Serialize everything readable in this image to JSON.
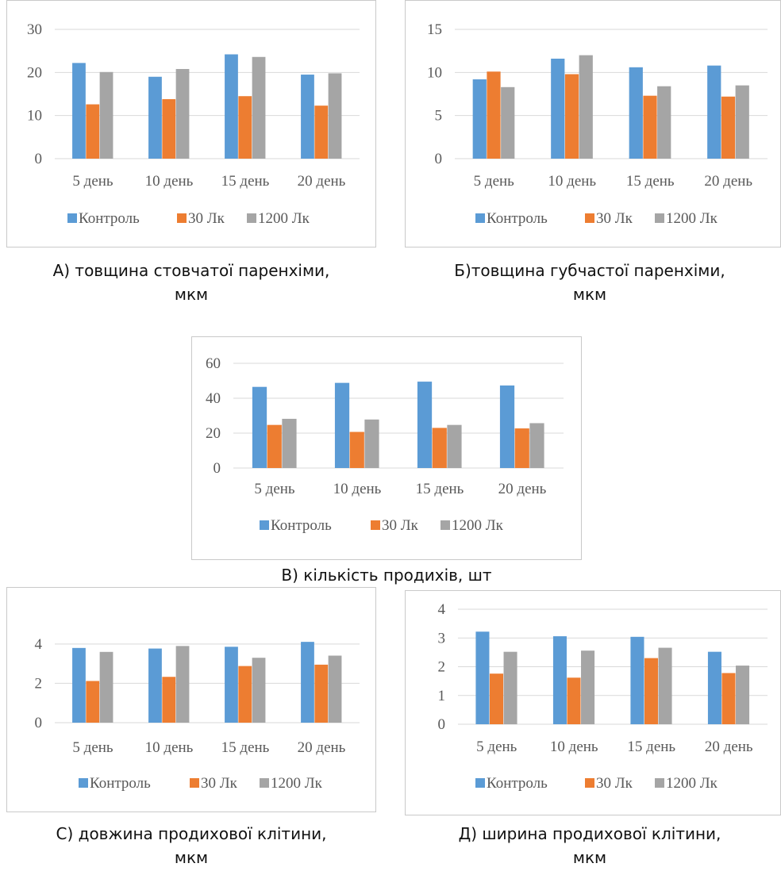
{
  "chart_data": [
    {
      "type": "bar",
      "categories": [
        "5 день",
        "10 день",
        "15 день",
        "20 день"
      ],
      "series": [
        {
          "name": "Контроль",
          "values": [
            22.2,
            19.0,
            24.2,
            19.5
          ]
        },
        {
          "name": "30 Лк",
          "values": [
            12.6,
            13.8,
            14.5,
            12.3
          ]
        },
        {
          "name": "1200 Лк",
          "values": [
            20.1,
            20.8,
            23.6,
            19.8
          ]
        }
      ],
      "ylim": [
        0,
        30
      ],
      "yticks": [
        0,
        10,
        20,
        30
      ],
      "caption_lines": [
        "А) товщина стовчатої паренхіми,",
        "мкм"
      ]
    },
    {
      "type": "bar",
      "categories": [
        "5 день",
        "10 день",
        "15 день",
        "20 день"
      ],
      "series": [
        {
          "name": "Контроль",
          "values": [
            9.2,
            11.6,
            10.6,
            10.8
          ]
        },
        {
          "name": "30 Лк",
          "values": [
            10.1,
            9.8,
            7.3,
            7.2
          ]
        },
        {
          "name": "1200 Лк",
          "values": [
            8.3,
            12.0,
            8.4,
            8.5
          ]
        }
      ],
      "ylim": [
        0,
        15
      ],
      "yticks": [
        0,
        5,
        10,
        15
      ],
      "caption_lines": [
        "Б)товщина губчастої паренхіми,",
        "мкм"
      ]
    },
    {
      "type": "bar",
      "categories": [
        "5 день",
        "10 день",
        "15 день",
        "20 день"
      ],
      "series": [
        {
          "name": "Контроль",
          "values": [
            46.5,
            48.8,
            49.5,
            47.3
          ]
        },
        {
          "name": "30 Лк",
          "values": [
            24.7,
            20.7,
            23.0,
            22.7
          ]
        },
        {
          "name": "1200 Лк",
          "values": [
            28.2,
            27.8,
            24.7,
            25.7
          ]
        }
      ],
      "ylim": [
        0,
        60
      ],
      "yticks": [
        0,
        20,
        40,
        60
      ],
      "caption_lines": [
        "В) кількість продихів, шт"
      ]
    },
    {
      "type": "bar",
      "categories": [
        "5 день",
        "10 день",
        "15 день",
        "20 день"
      ],
      "series": [
        {
          "name": "Контроль",
          "values": [
            3.8,
            3.77,
            3.86,
            4.11
          ]
        },
        {
          "name": "30 Лк",
          "values": [
            2.12,
            2.33,
            2.88,
            2.95
          ]
        },
        {
          "name": "1200 Лк",
          "values": [
            3.6,
            3.9,
            3.3,
            3.41
          ]
        }
      ],
      "ylim": [
        0,
        4.6
      ],
      "yticks": [
        0,
        2,
        4
      ],
      "caption_lines": [
        "С) довжина продихової клітини,",
        "мкм"
      ]
    },
    {
      "type": "bar",
      "categories": [
        "5 день",
        "10 день",
        "15 день",
        "20 день"
      ],
      "series": [
        {
          "name": "Контроль",
          "values": [
            3.22,
            3.06,
            3.04,
            2.52
          ]
        },
        {
          "name": "30 Лк",
          "values": [
            1.76,
            1.62,
            2.3,
            1.78
          ]
        },
        {
          "name": "1200 Лк",
          "values": [
            2.52,
            2.56,
            2.66,
            2.04
          ]
        }
      ],
      "ylim": [
        0,
        4
      ],
      "yticks": [
        0,
        1,
        2,
        3,
        4
      ],
      "caption_lines": [
        "Д) ширина продихової клітини,",
        "мкм"
      ]
    }
  ],
  "colors": {
    "series": [
      "#5b9bd5",
      "#ed7d31",
      "#a5a5a5"
    ],
    "grid": "#d9d9d9",
    "border": "#c9c9c9"
  }
}
